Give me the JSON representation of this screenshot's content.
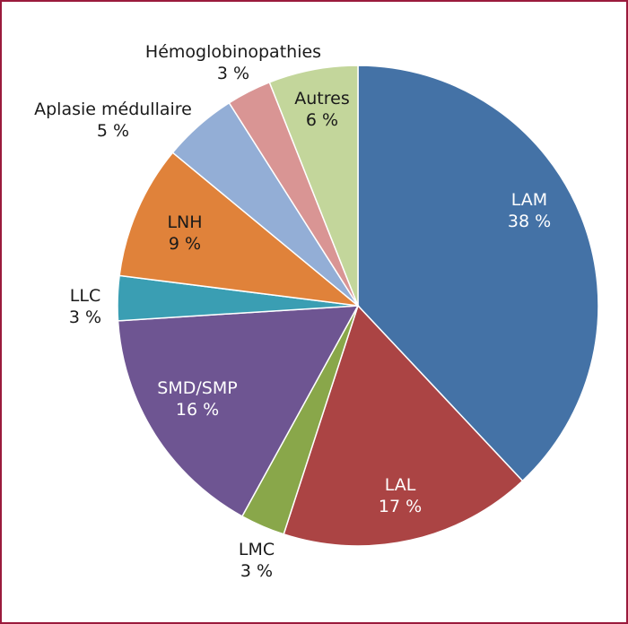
{
  "chart_data": {
    "type": "pie",
    "title": "",
    "slices": [
      {
        "label": "LAM",
        "value": 38,
        "value_text": "38 %",
        "color": "#4472a6"
      },
      {
        "label": "LAL",
        "value": 17,
        "value_text": "17 %",
        "color": "#ab4444"
      },
      {
        "label": "LMC",
        "value": 3,
        "value_text": "3 %",
        "color": "#89a74a"
      },
      {
        "label": "SMD/SMP",
        "value": 16,
        "value_text": "16 %",
        "color": "#6e5592"
      },
      {
        "label": "LLC",
        "value": 3,
        "value_text": "3 %",
        "color": "#3a9eb3"
      },
      {
        "label": "LNH",
        "value": 9,
        "value_text": "9 %",
        "color": "#e0823a"
      },
      {
        "label": "Aplasie médullaire",
        "value": 5,
        "value_text": "5 %",
        "color": "#93aed6"
      },
      {
        "label": "Hémoglobinopathies",
        "value": 3,
        "value_text": "3 %",
        "color": "#d99594"
      },
      {
        "label": "Autres",
        "value": 6,
        "value_text": "6 %",
        "color": "#c3d69b"
      }
    ]
  }
}
